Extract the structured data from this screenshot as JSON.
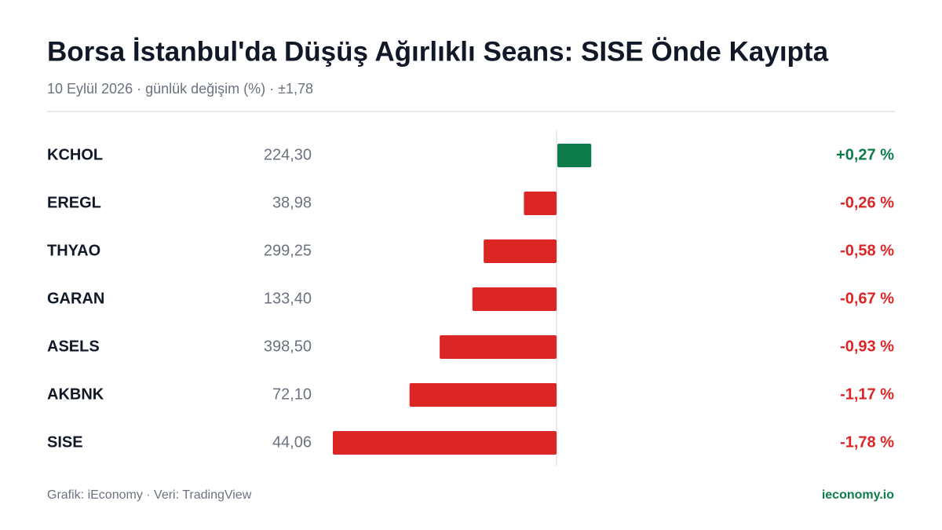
{
  "chart_data": {
    "type": "diverging-bar",
    "title": "Borsa İstanbul'da Düşüş Ağırlıklı Seans: SISE Önde Kayıpta",
    "subtitle": "10 Eylül 2026 · günlük değişim (%) · ±1,78",
    "categories": [
      "KCHOL",
      "EREGL",
      "THYAO",
      "GARAN",
      "ASELS",
      "AKBNK",
      "SISE"
    ],
    "prices": [
      "224,30",
      "38,98",
      "299,25",
      "133,40",
      "398,50",
      "72,10",
      "44,06"
    ],
    "values": [
      0.27,
      -0.26,
      -0.58,
      -0.67,
      -0.93,
      -1.17,
      -1.78
    ],
    "value_labels": [
      "+0,27 %",
      "-0,26 %",
      "-0,58 %",
      "-0,67 %",
      "-0,93 %",
      "-1,17 %",
      "-1,78 %"
    ],
    "xlim": [
      -1.78,
      1.78
    ],
    "positive_color": "#0e7c4a",
    "negative_color": "#dc2626",
    "source": "Grafik: iEconomy · Veri: TradingView",
    "brand": "ieconomy.io"
  }
}
